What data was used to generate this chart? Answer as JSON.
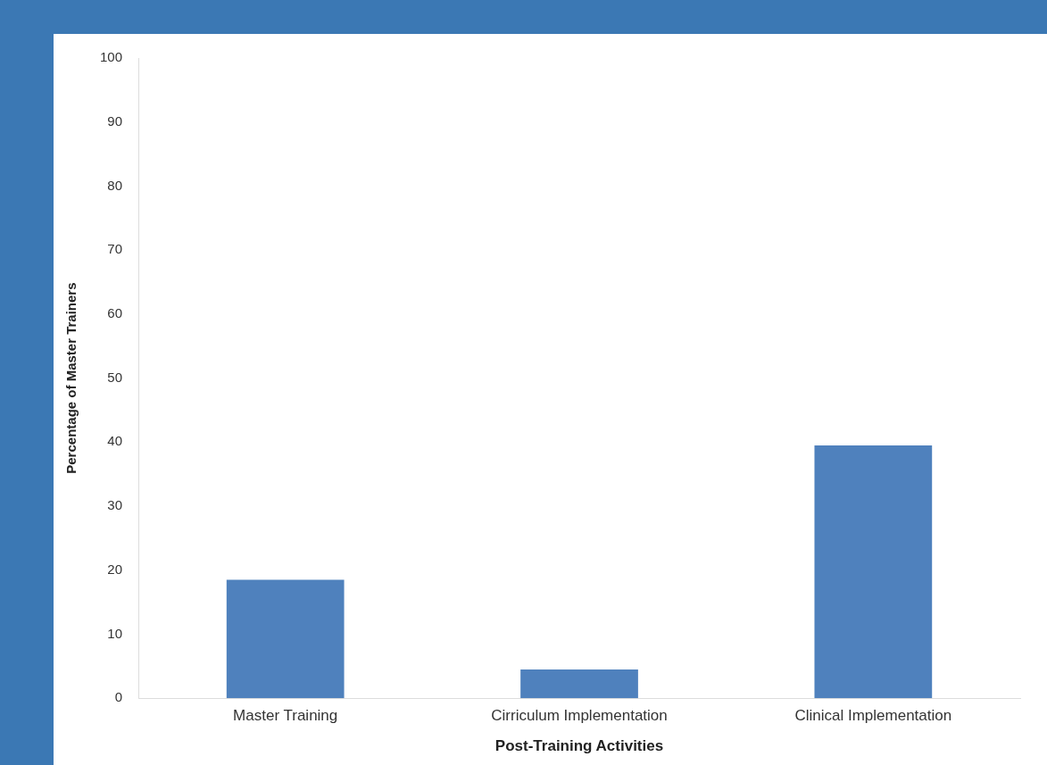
{
  "chart_data": {
    "type": "bar",
    "xlabel": "Post-Training Activities",
    "ylabel": "Percentage of Master Trainers",
    "categories": [
      "Master Training",
      "Cirriculum Implementation",
      "Clinical Implementation"
    ],
    "values": [
      18.5,
      4.5,
      39.5
    ],
    "color": "#4f81bd",
    "ylim": [
      0,
      100
    ],
    "yticks": [
      0,
      10,
      20,
      30,
      40,
      50,
      60,
      70,
      80,
      90,
      100
    ],
    "grid": false,
    "legend": false
  }
}
